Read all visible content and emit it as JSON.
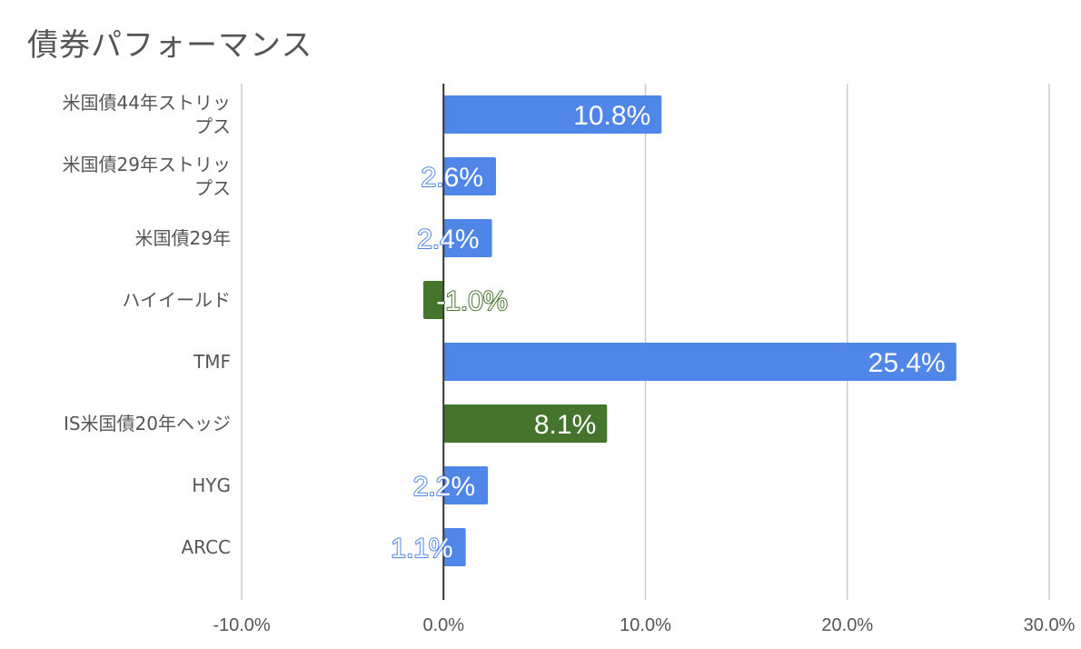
{
  "chart_data": {
    "type": "bar",
    "orientation": "horizontal",
    "title": "債券パフォーマンス",
    "categories": [
      [
        "米国債44年ストリッ",
        "プス"
      ],
      [
        "米国債29年ストリッ",
        "プス"
      ],
      [
        "米国債29年"
      ],
      [
        "ハイイールド"
      ],
      [
        "TMF"
      ],
      [
        "IS米国債20年ヘッジ"
      ],
      [
        "HYG"
      ],
      [
        "ARCC"
      ]
    ],
    "values": [
      10.8,
      2.6,
      2.4,
      -1.0,
      25.4,
      8.1,
      2.2,
      1.1
    ],
    "value_labels": [
      "10.8%",
      "2.6%",
      "2.4%",
      "-1.0%",
      "25.4%",
      "8.1%",
      "2.2%",
      "1.1%"
    ],
    "bar_colors": [
      "#4f86e8",
      "#4f86e8",
      "#4f86e8",
      "#45742c",
      "#4f86e8",
      "#45742c",
      "#4f86e8",
      "#4f86e8"
    ],
    "xlim": [
      -10,
      30
    ],
    "xticks": [
      -10,
      0,
      10,
      20,
      30
    ],
    "xtick_labels": [
      "-10.0%",
      "0.0%",
      "10.0%",
      "20.0%",
      "30.0%"
    ],
    "grid": true,
    "legend": "none",
    "colors": {
      "gridline": "#cccccc",
      "zero_axis": "#333333",
      "text": "#555555"
    }
  }
}
